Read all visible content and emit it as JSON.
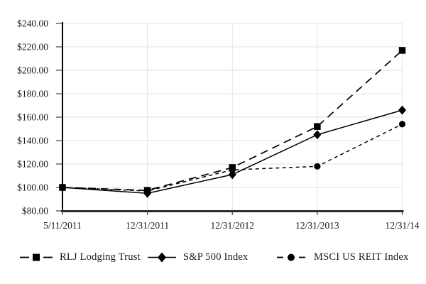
{
  "chart_data": {
    "type": "line",
    "title": "",
    "xlabel": "",
    "ylabel": "",
    "x_labels": [
      "5/11/2011",
      "12/31/2011",
      "12/31/2012",
      "12/31/2013",
      "12/31/14"
    ],
    "ylim": [
      80,
      240
    ],
    "y_ticks": [
      {
        "value": 240,
        "label": "$240.00"
      },
      {
        "value": 220,
        "label": "$220.00"
      },
      {
        "value": 200,
        "label": "$200.00"
      },
      {
        "value": 180,
        "label": "$180.00"
      },
      {
        "value": 160,
        "label": "$160.00"
      },
      {
        "value": 140,
        "label": "$140.00"
      },
      {
        "value": 120,
        "label": "$120.00"
      },
      {
        "value": 100,
        "label": "$100.00"
      },
      {
        "value": 80,
        "label": "$80.00"
      }
    ],
    "grid": true,
    "legend_position": "bottom",
    "series": [
      {
        "name": "RLJ Lodging Trust",
        "marker": "square",
        "line_style": "long-dash",
        "values": [
          100,
          97.5,
          117,
          152,
          217
        ]
      },
      {
        "name": "S&P 500 Index",
        "marker": "diamond",
        "line_style": "solid",
        "values": [
          100,
          95,
          111,
          145,
          166
        ]
      },
      {
        "name": "MSCI US REIT Index",
        "marker": "circle",
        "line_style": "short-dash",
        "values": [
          100,
          97,
          115,
          118,
          154
        ]
      }
    ],
    "colors": {
      "series": "#000000",
      "grid": "#e2e2e2",
      "axis_left": "#000000",
      "axis_bottom": "#2d2d2d",
      "tick": "#444444",
      "text": "#1a1a1a"
    }
  }
}
